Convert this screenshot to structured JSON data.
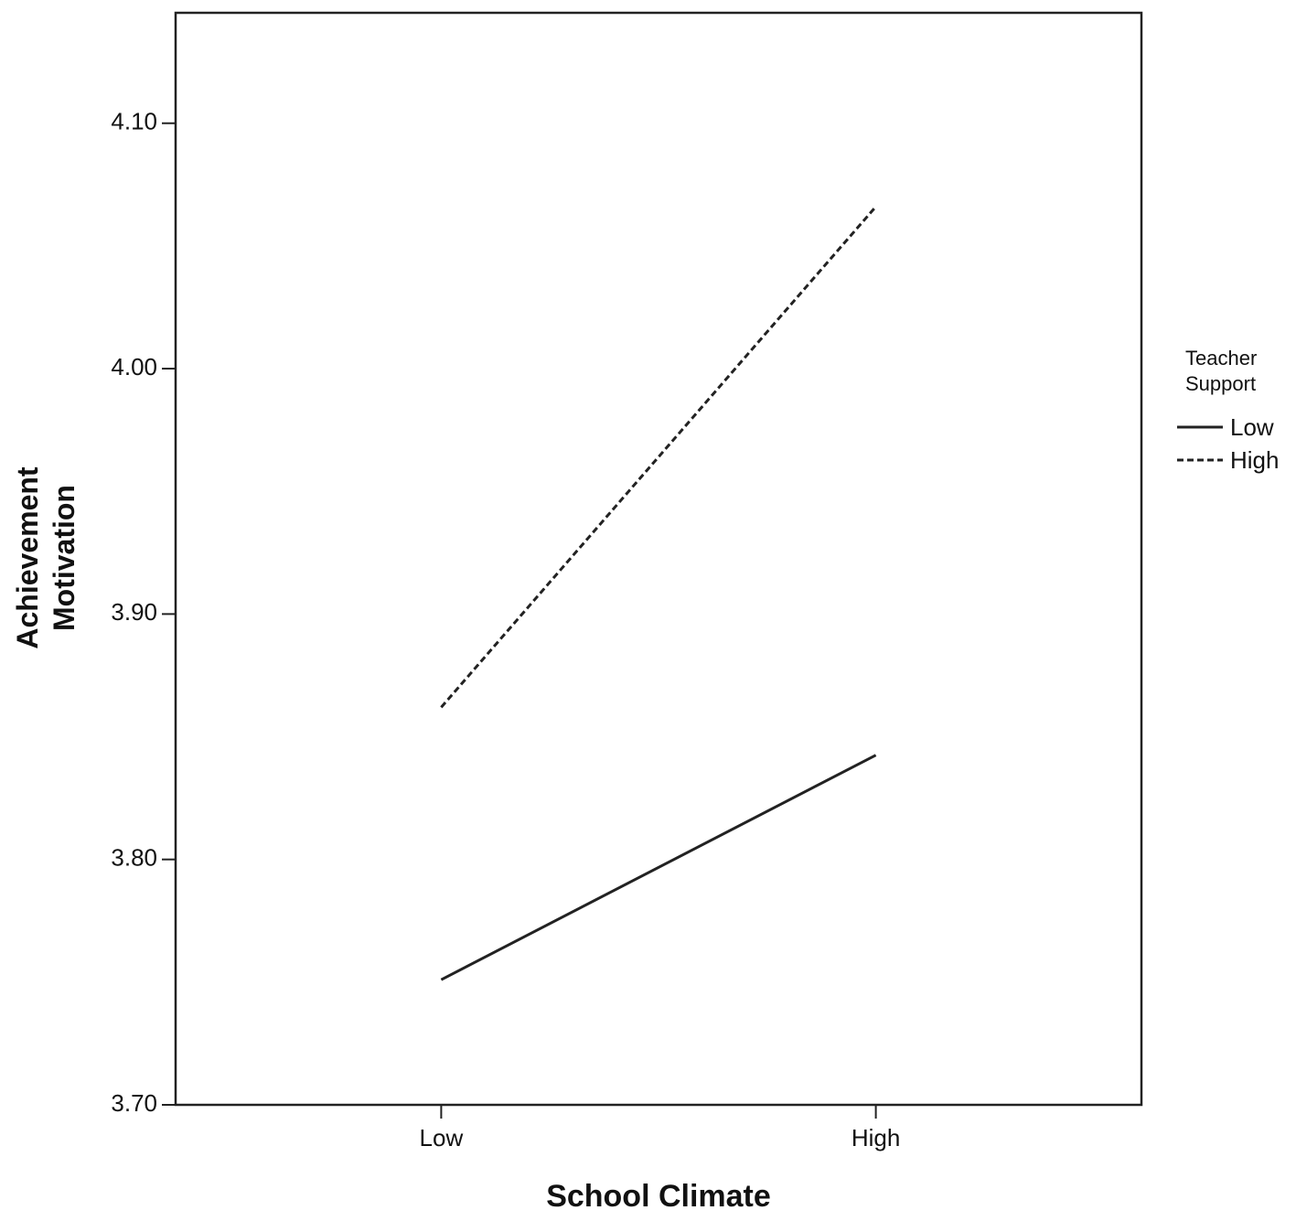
{
  "chart_data": {
    "type": "line",
    "x_label": "School Climate",
    "y_label": "Achievement Motivation",
    "legend_title": "Teacher Support",
    "legend_position": "right",
    "categories": [
      "Low",
      "High"
    ],
    "series": [
      {
        "name": "Low",
        "color": "#222222",
        "line_style": "solid",
        "values": [
          3.751,
          3.8425
        ]
      },
      {
        "name": "High",
        "color": "#222222",
        "line_style": "dashed",
        "values": [
          3.862,
          4.066
        ]
      }
    ],
    "ylim": [
      3.7,
      4.145
    ],
    "yticks": [
      {
        "value": 3.7,
        "label": "3.70"
      },
      {
        "value": 3.8,
        "label": "3.80"
      },
      {
        "value": 3.9,
        "label": "3.90"
      },
      {
        "value": 4.0,
        "label": "4.00"
      },
      {
        "value": 4.1,
        "label": "4.10"
      }
    ],
    "grid": false
  }
}
